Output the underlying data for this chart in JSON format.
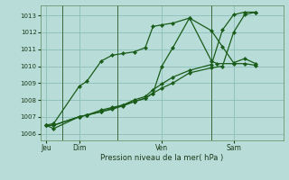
{
  "bg_color": "#b8ddd8",
  "plot_bg_color": "#b8ddd8",
  "grid_color": "#8cbcb8",
  "line_color": "#1a5c1a",
  "xlabel": "Pression niveau de la mer( hPa )",
  "xtick_labels": [
    "Jeu",
    "Dim",
    "Ven",
    "Sam"
  ],
  "xtick_positions": [
    0.5,
    3.5,
    11.0,
    17.5
  ],
  "vline_x": [
    2.0,
    7.0,
    15.5
  ],
  "ylabel_ticks": [
    1006,
    1007,
    1008,
    1009,
    1010,
    1011,
    1012,
    1013
  ],
  "ylim": [
    1005.6,
    1013.6
  ],
  "xlim": [
    0,
    22
  ],
  "series1_x": [
    0.5,
    1.2,
    3.5,
    4.2,
    5.5,
    6.5,
    7.5,
    8.5,
    9.5,
    10.2,
    11.0,
    12.0,
    13.5,
    15.5,
    16.5,
    17.5,
    18.5,
    19.5
  ],
  "series1_y": [
    1006.5,
    1006.6,
    1008.8,
    1009.1,
    1010.3,
    1010.65,
    1010.75,
    1010.85,
    1011.1,
    1012.35,
    1012.45,
    1012.55,
    1012.85,
    1012.1,
    1011.15,
    1010.2,
    1010.45,
    1010.15
  ],
  "series2_x": [
    0.5,
    1.2,
    3.5,
    4.2,
    5.5,
    6.5,
    7.5,
    8.5,
    9.5,
    10.2,
    11.0,
    12.0,
    13.5,
    15.5,
    16.0,
    17.5,
    18.5,
    19.5
  ],
  "series2_y": [
    1006.5,
    1006.3,
    1007.0,
    1007.1,
    1007.4,
    1007.55,
    1007.7,
    1007.9,
    1008.1,
    1008.4,
    1010.0,
    1011.1,
    1012.85,
    1010.3,
    1010.15,
    1010.15,
    1010.15,
    1010.05
  ],
  "series3_x": [
    0.5,
    1.2,
    3.5,
    4.2,
    5.5,
    6.5,
    7.5,
    8.5,
    9.5,
    10.2,
    11.0,
    12.0,
    13.5,
    15.5,
    16.5,
    17.5,
    18.5,
    19.5
  ],
  "series3_y": [
    1006.5,
    1006.5,
    1007.0,
    1007.1,
    1007.3,
    1007.45,
    1007.65,
    1007.9,
    1008.1,
    1008.4,
    1008.7,
    1009.0,
    1009.6,
    1009.9,
    1010.0,
    1012.0,
    1013.05,
    1013.2
  ],
  "series4_x": [
    0.5,
    1.2,
    3.5,
    4.2,
    5.5,
    6.5,
    7.5,
    8.5,
    9.5,
    10.2,
    11.0,
    12.0,
    13.5,
    15.5,
    16.5,
    17.5,
    18.5,
    19.5
  ],
  "series4_y": [
    1006.5,
    1006.5,
    1007.0,
    1007.1,
    1007.3,
    1007.5,
    1007.7,
    1008.0,
    1008.2,
    1008.6,
    1008.95,
    1009.35,
    1009.75,
    1010.1,
    1012.15,
    1013.05,
    1013.2,
    1013.2
  ]
}
